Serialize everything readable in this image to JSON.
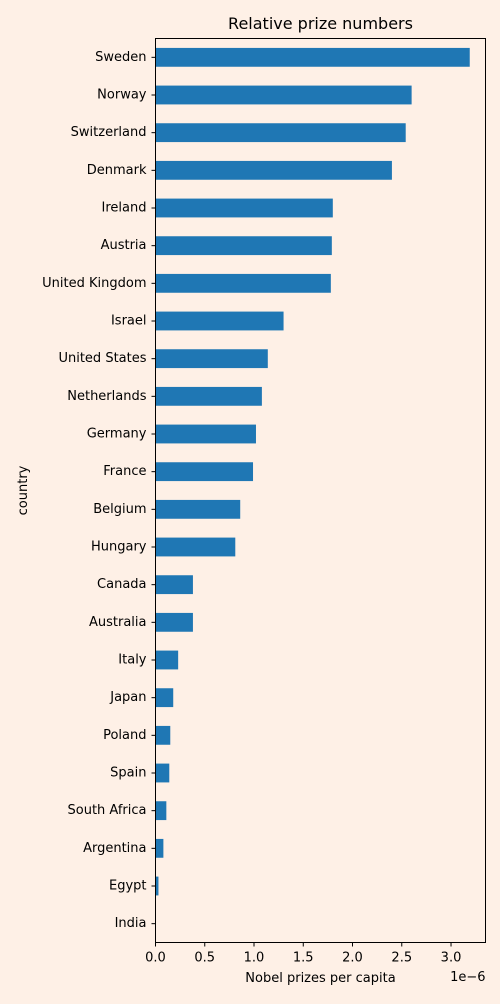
{
  "chart_data": {
    "type": "bar",
    "orientation": "horizontal",
    "title": "Relative prize numbers",
    "xlabel": "Nobel prizes per capita",
    "ylabel": "country",
    "x_scale_label": "1e−6",
    "xlim": [
      0,
      3.35
    ],
    "xticks": [
      0.0,
      0.5,
      1.0,
      1.5,
      2.0,
      2.5,
      3.0
    ],
    "xtick_labels": [
      "0.0",
      "0.5",
      "1.0",
      "1.5",
      "2.0",
      "2.5",
      "3.0"
    ],
    "grid": false,
    "legend": false,
    "categories": [
      "Sweden",
      "Norway",
      "Switzerland",
      "Denmark",
      "Ireland",
      "Austria",
      "United Kingdom",
      "Israel",
      "United States",
      "Netherlands",
      "Germany",
      "France",
      "Belgium",
      "Hungary",
      "Canada",
      "Australia",
      "Italy",
      "Japan",
      "Poland",
      "Spain",
      "South Africa",
      "Argentina",
      "Egypt",
      "India"
    ],
    "values": [
      3.19,
      2.6,
      2.54,
      2.4,
      1.8,
      1.79,
      1.78,
      1.3,
      1.14,
      1.08,
      1.02,
      0.99,
      0.86,
      0.81,
      0.38,
      0.38,
      0.23,
      0.18,
      0.15,
      0.14,
      0.11,
      0.08,
      0.03,
      0.002
    ],
    "bar_color": "#1f77b4",
    "background_color": "#fef0e6"
  }
}
